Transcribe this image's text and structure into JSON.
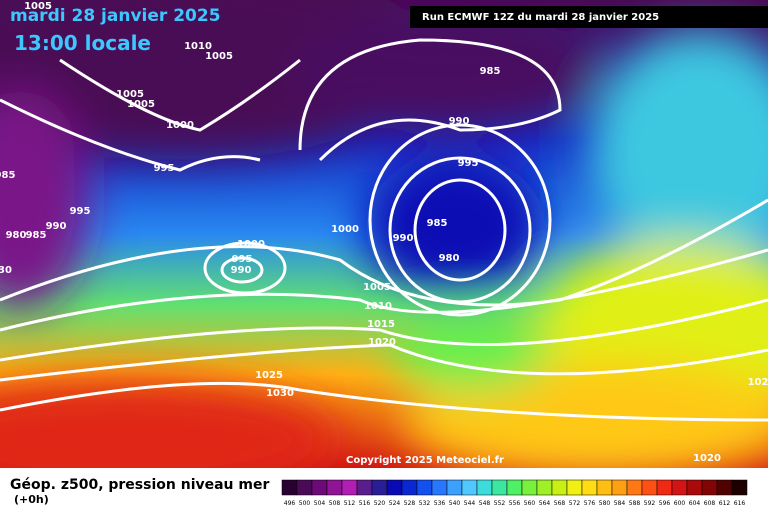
{
  "header": {
    "date": "mardi 28 janvier 2025",
    "time": "13:00 locale",
    "run": "Run ECMWF 12Z du mardi 28 janvier 2025"
  },
  "copyright": "Copyright 2025 Meteociel.fr",
  "legend": {
    "title": "Géop. z500, pression niveau mer",
    "step": "(+0h)",
    "scale": [
      {
        "label": "496",
        "color": "#2a0033"
      },
      {
        "label": "500",
        "color": "#4a0a55"
      },
      {
        "label": "504",
        "color": "#6e0a78"
      },
      {
        "label": "508",
        "color": "#8f1496"
      },
      {
        "label": "512",
        "color": "#b01eb4"
      },
      {
        "label": "516",
        "color": "#5a1e8c"
      },
      {
        "label": "520",
        "color": "#2a1e96"
      },
      {
        "label": "524",
        "color": "#0a0ab4"
      },
      {
        "label": "528",
        "color": "#0a28d2"
      },
      {
        "label": "532",
        "color": "#1450f0"
      },
      {
        "label": "536",
        "color": "#2878ff"
      },
      {
        "label": "540",
        "color": "#3ca0ff"
      },
      {
        "label": "544",
        "color": "#50c8ff"
      },
      {
        "label": "548",
        "color": "#3cdcdc"
      },
      {
        "label": "552",
        "color": "#3ce6a0"
      },
      {
        "label": "556",
        "color": "#50f064"
      },
      {
        "label": "560",
        "color": "#78f03c"
      },
      {
        "label": "564",
        "color": "#a0f028"
      },
      {
        "label": "568",
        "color": "#c8f014"
      },
      {
        "label": "572",
        "color": "#f0f014"
      },
      {
        "label": "576",
        "color": "#ffdc14"
      },
      {
        "label": "580",
        "color": "#ffbe14"
      },
      {
        "label": "584",
        "color": "#ffa014"
      },
      {
        "label": "588",
        "color": "#ff7814"
      },
      {
        "label": "592",
        "color": "#ff5014"
      },
      {
        "label": "596",
        "color": "#f02814"
      },
      {
        "label": "600",
        "color": "#d21414"
      },
      {
        "label": "604",
        "color": "#aa0a0a"
      },
      {
        "label": "608",
        "color": "#820505"
      },
      {
        "label": "612",
        "color": "#500202"
      },
      {
        "label": "616",
        "color": "#1e0000"
      }
    ]
  },
  "isobar_labels": [
    "1005",
    "1010",
    "1005",
    "1005",
    "1005",
    "1000",
    "985",
    "990",
    "995",
    "995",
    "995",
    "985",
    "990",
    "980",
    "985",
    "1000",
    "990",
    "985",
    "980",
    "1000",
    "995",
    "990",
    "1005",
    "1010",
    "1015",
    "1020",
    "1025",
    "1030",
    "1020",
    "102",
    "30"
  ]
}
